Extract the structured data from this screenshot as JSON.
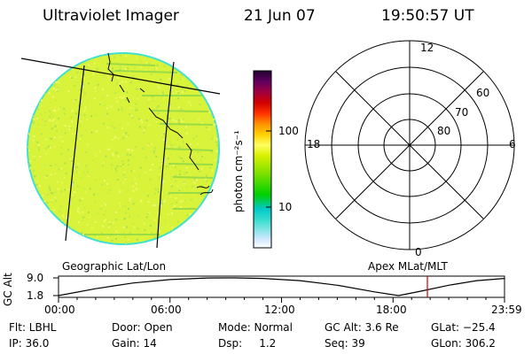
{
  "header": {
    "instrument": "Ultraviolet Imager",
    "date": "21 Jun 07",
    "time": "19:50:57 UT"
  },
  "colorbar": {
    "unit": "photon cm⁻²s⁻¹",
    "ticks": [
      "100",
      "10"
    ],
    "colors": [
      "#ffffff",
      "#cfe8ff",
      "#40e0d0",
      "#00c8c8",
      "#00d000",
      "#7ee000",
      "#d8f000",
      "#ffff60",
      "#ffd000",
      "#ff9000",
      "#ff3000",
      "#d00000",
      "#a00040",
      "#600060",
      "#200030"
    ]
  },
  "polar_plot": {
    "lat_rings": [
      "80",
      "70",
      "60"
    ],
    "mlt_labels": {
      "top": "12",
      "bottom": "0",
      "left": "18",
      "right": "6"
    }
  },
  "image_panel": {
    "fill_color": "#d9f23a",
    "edge_color": "#40e0d0"
  },
  "projection_labels": {
    "left": "Geographic Lat/Lon",
    "right": "Apex MLat/MLT"
  },
  "chart_data": {
    "type": "line",
    "ylabel": "GC Alt",
    "y_ticks": [
      "9.0",
      "1.8"
    ],
    "ylim": [
      1.8,
      9.0
    ],
    "x_ticks": [
      "00:00",
      "06:00",
      "12:00",
      "18:00",
      "23:59"
    ],
    "xlim_hours": [
      0,
      24
    ],
    "series": [
      {
        "x": [
          0,
          2,
          4,
          6,
          8,
          9.5,
          11,
          13,
          15,
          17,
          18.3,
          19.5,
          21,
          22.5,
          24
        ],
        "y": [
          1.8,
          4.6,
          6.9,
          8.3,
          8.95,
          9.0,
          8.8,
          7.9,
          6.0,
          3.3,
          1.8,
          3.6,
          6.0,
          7.9,
          8.8
        ]
      }
    ],
    "current_time_hours": 19.85,
    "current_time_color": "#cc0000"
  },
  "info": {
    "flt": "Flt: LBHL",
    "ip": "IP: 36.0",
    "door": "Door: Open",
    "gain": "Gain: 14",
    "mode": "Mode: Normal",
    "dsp": "Dsp:     1.2",
    "gc_alt": "GC Alt: 3.6 Re",
    "seq": "Seq: 39",
    "glat": "GLat: −25.4",
    "glon": "GLon: 306.2"
  }
}
